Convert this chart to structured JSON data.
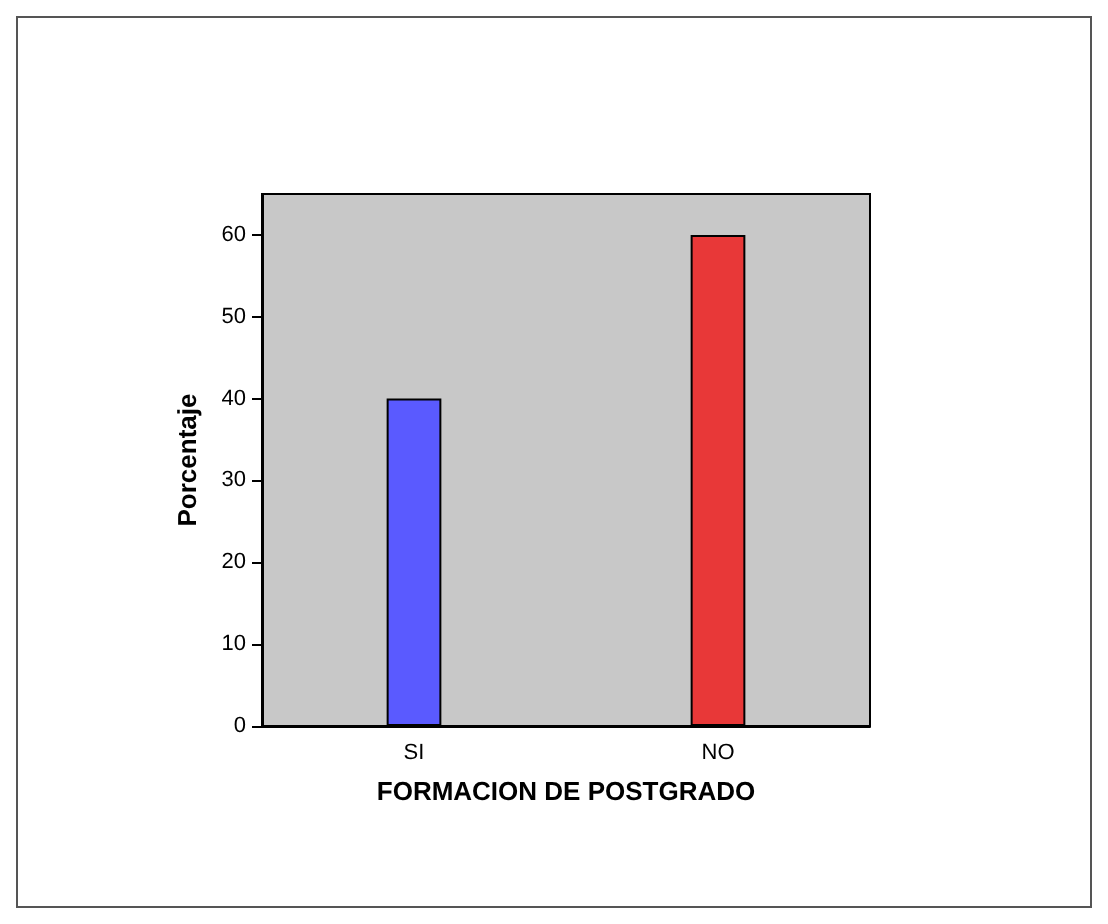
{
  "chart_data": {
    "type": "bar",
    "xlabel": "FORMACION DE POSTGRADO",
    "ylabel": "Porcentaje",
    "categories": [
      "SI",
      "NO"
    ],
    "values": [
      40,
      60
    ],
    "colors": [
      "#5a5aff",
      "#e83838"
    ],
    "ylim": [
      0,
      65
    ],
    "yticks": [
      0,
      10,
      20,
      30,
      40,
      50,
      60
    ],
    "grid": false
  }
}
